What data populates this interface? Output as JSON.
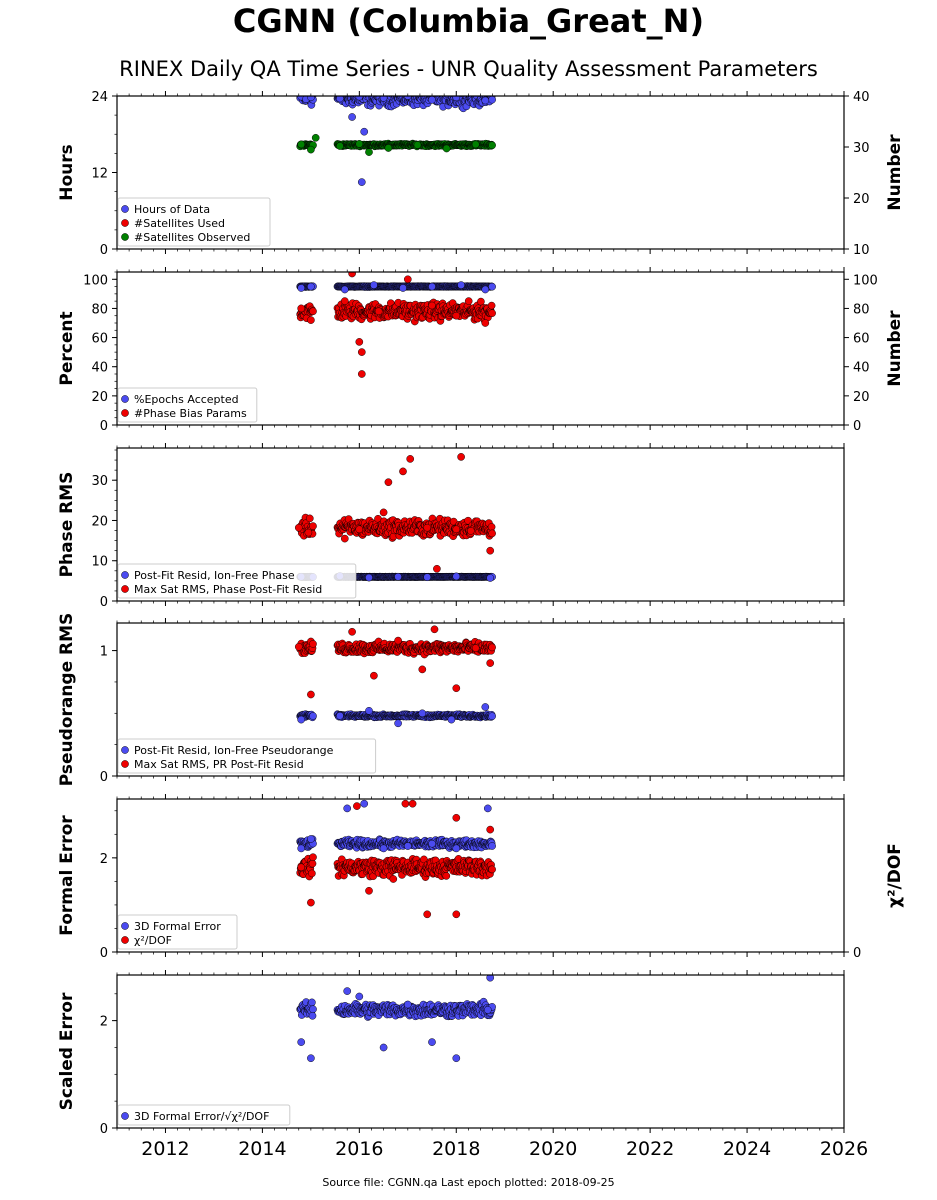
{
  "title": "CGNN (Columbia_Great_N)",
  "subtitle": "RINEX Daily QA Time Series - UNR Quality Assessment Parameters",
  "footer": "Source file: CGNN.qa Last epoch plotted: 2018-09-25",
  "colors": {
    "blue": "#4b4bf0",
    "red": "#ee0000",
    "green": "#008000",
    "edge": "#000000"
  },
  "chart_data": [
    {
      "type": "scatter",
      "ylabel": "Hours",
      "ylabel_right": "Number",
      "xlim": [
        2011.0,
        2026.0
      ],
      "ylim": [
        0,
        24
      ],
      "ylim_right": [
        10,
        40
      ],
      "yticks": [
        0,
        12,
        24
      ],
      "yticks_right": [
        10,
        20,
        30,
        40
      ],
      "legend_position": "lower-left",
      "series": [
        {
          "name": "Hours of Data",
          "color": "blue",
          "axis": "left",
          "points": [
            [
              2014.8,
              23.9
            ],
            [
              2014.9,
              23.5
            ],
            [
              2015.0,
              23.8
            ],
            [
              2015.6,
              23.6
            ],
            [
              2016.0,
              23.9
            ],
            [
              2016.5,
              23.7
            ],
            [
              2017.0,
              24.0
            ],
            [
              2017.5,
              23.4
            ],
            [
              2018.0,
              23.8
            ],
            [
              2018.6,
              23.3
            ],
            [
              2015.85,
              20.7
            ],
            [
              2016.1,
              18.4
            ],
            [
              2016.05,
              10.5
            ]
          ]
        },
        {
          "name": "#Satellites Used",
          "color": "red",
          "axis": "right",
          "points": []
        },
        {
          "name": "#Satellites Observed",
          "color": "green",
          "axis": "right",
          "points": [
            [
              2014.8,
              30.5
            ],
            [
              2015.0,
              29.5
            ],
            [
              2015.6,
              30.2
            ],
            [
              2016.0,
              30.6
            ],
            [
              2016.6,
              29.8
            ],
            [
              2017.2,
              30.4
            ],
            [
              2017.8,
              29.7
            ],
            [
              2018.4,
              30.5
            ],
            [
              2015.1,
              31.8
            ],
            [
              2016.2,
              29.0
            ]
          ]
        }
      ]
    },
    {
      "type": "scatter",
      "ylabel": "Percent",
      "ylabel_right": "Number",
      "xlim": [
        2011.0,
        2026.0
      ],
      "ylim": [
        0,
        105
      ],
      "ylim_right": [
        0,
        105
      ],
      "yticks": [
        0,
        20,
        40,
        60,
        80,
        100
      ],
      "yticks_right": [
        0,
        20,
        40,
        60,
        80,
        100
      ],
      "legend_position": "lower-left",
      "series": [
        {
          "name": "%Epochs Accepted",
          "color": "blue",
          "axis": "left",
          "points": [
            [
              2014.8,
              94
            ],
            [
              2015.0,
              95
            ],
            [
              2015.7,
              93
            ],
            [
              2016.3,
              96
            ],
            [
              2016.9,
              94
            ],
            [
              2017.5,
              95
            ],
            [
              2018.1,
              96
            ],
            [
              2018.6,
              93
            ]
          ]
        },
        {
          "name": "#Phase Bias Params",
          "color": "red",
          "axis": "right",
          "points": [
            [
              2014.8,
              80
            ],
            [
              2015.0,
              72
            ],
            [
              2015.7,
              85
            ],
            [
              2015.85,
              104
            ],
            [
              2016.0,
              57
            ],
            [
              2016.05,
              50
            ],
            [
              2016.05,
              35
            ],
            [
              2016.4,
              78
            ],
            [
              2017.0,
              100
            ],
            [
              2017.5,
              82
            ],
            [
              2018.0,
              75
            ],
            [
              2018.6,
              70
            ]
          ]
        }
      ]
    },
    {
      "type": "scatter",
      "ylabel": "Phase RMS",
      "xlim": [
        2011.0,
        2026.0
      ],
      "ylim": [
        0,
        38
      ],
      "yticks": [
        0,
        10,
        20,
        30
      ],
      "legend_position": "lower-left",
      "series": [
        {
          "name": "Post-Fit Resid, Ion-Free Phase",
          "color": "blue",
          "axis": "left",
          "points": [
            [
              2014.8,
              6.0
            ],
            [
              2015.6,
              6.2
            ],
            [
              2016.2,
              5.8
            ],
            [
              2016.8,
              6.0
            ],
            [
              2017.4,
              5.9
            ],
            [
              2018.0,
              6.1
            ],
            [
              2018.7,
              5.7
            ]
          ]
        },
        {
          "name": "Max Sat RMS, Phase Post-Fit Resid",
          "color": "red",
          "axis": "left",
          "points": [
            [
              2014.75,
              18.2
            ],
            [
              2014.95,
              17.0
            ],
            [
              2015.7,
              15.5
            ],
            [
              2016.0,
              17.8
            ],
            [
              2016.5,
              22.0
            ],
            [
              2016.6,
              29.5
            ],
            [
              2016.9,
              32.2
            ],
            [
              2017.05,
              35.3
            ],
            [
              2017.4,
              18.2
            ],
            [
              2018.0,
              17.8
            ],
            [
              2018.1,
              35.8
            ],
            [
              2018.3,
              17.4
            ],
            [
              2018.7,
              12.5
            ],
            [
              2017.6,
              8.0
            ]
          ]
        }
      ]
    },
    {
      "type": "scatter",
      "ylabel": "Pseudorange RMS",
      "xlim": [
        2011.0,
        2026.0
      ],
      "ylim": [
        0,
        1.22
      ],
      "yticks": [
        0,
        1
      ],
      "legend_position": "lower-left",
      "series": [
        {
          "name": "Post-Fit Resid, Ion-Free Pseudorange",
          "color": "blue",
          "axis": "left",
          "points": [
            [
              2014.8,
              0.45
            ],
            [
              2015.6,
              0.48
            ],
            [
              2016.2,
              0.52
            ],
            [
              2016.8,
              0.42
            ],
            [
              2017.3,
              0.5
            ],
            [
              2017.9,
              0.45
            ],
            [
              2018.6,
              0.55
            ]
          ]
        },
        {
          "name": "Max Sat RMS, PR Post-Fit Resid",
          "color": "red",
          "axis": "left",
          "points": [
            [
              2014.75,
              1.03
            ],
            [
              2015.0,
              0.65
            ],
            [
              2015.85,
              1.15
            ],
            [
              2016.3,
              0.8
            ],
            [
              2016.8,
              1.08
            ],
            [
              2017.3,
              0.85
            ],
            [
              2017.55,
              1.17
            ],
            [
              2018.0,
              0.7
            ],
            [
              2018.4,
              1.02
            ],
            [
              2018.7,
              0.9
            ]
          ]
        }
      ]
    },
    {
      "type": "scatter",
      "ylabel": "Formal Error",
      "ylabel_right": "χ²/DOF",
      "xlim": [
        2011.0,
        2026.0
      ],
      "ylim": [
        0,
        3.25
      ],
      "ylim_right": [
        0,
        3.25
      ],
      "yticks": [
        0,
        2
      ],
      "yticks_right": [
        0
      ],
      "legend_position": "lower-left",
      "series": [
        {
          "name": "3D Formal Error",
          "color": "blue",
          "axis": "left",
          "points": [
            [
              2014.8,
              2.2
            ],
            [
              2015.0,
              2.4
            ],
            [
              2015.75,
              3.05
            ],
            [
              2016.1,
              3.15
            ],
            [
              2016.5,
              2.2
            ],
            [
              2017.0,
              2.25
            ],
            [
              2017.5,
              2.3
            ],
            [
              2018.0,
              2.2
            ],
            [
              2018.65,
              3.05
            ]
          ]
        },
        {
          "name": "χ²/DOF",
          "color": "red",
          "axis": "right",
          "points": [
            [
              2014.8,
              1.8
            ],
            [
              2015.0,
              1.05
            ],
            [
              2015.95,
              3.1
            ],
            [
              2016.2,
              1.3
            ],
            [
              2016.7,
              1.55
            ],
            [
              2016.95,
              3.15
            ],
            [
              2017.1,
              3.15
            ],
            [
              2017.4,
              0.8
            ],
            [
              2018.0,
              2.85
            ],
            [
              2018.0,
              0.8
            ],
            [
              2018.7,
              2.6
            ]
          ]
        }
      ]
    },
    {
      "type": "scatter",
      "ylabel": "Scaled Error",
      "xlim": [
        2011.0,
        2026.0
      ],
      "ylim": [
        0,
        2.85
      ],
      "yticks": [
        0,
        2
      ],
      "xticks": [
        2012,
        2014,
        2016,
        2018,
        2020,
        2022,
        2024,
        2026
      ],
      "legend_position": "lower-left",
      "series": [
        {
          "name": "3D Formal Error/√χ²/DOF",
          "color": "blue",
          "axis": "left",
          "points": [
            [
              2014.8,
              1.6
            ],
            [
              2015.0,
              1.3
            ],
            [
              2015.75,
              2.55
            ],
            [
              2016.0,
              2.45
            ],
            [
              2016.5,
              1.5
            ],
            [
              2017.0,
              2.3
            ],
            [
              2017.5,
              1.6
            ],
            [
              2018.0,
              1.3
            ],
            [
              2018.7,
              2.8
            ],
            [
              2018.65,
              2.2
            ]
          ]
        }
      ]
    }
  ]
}
